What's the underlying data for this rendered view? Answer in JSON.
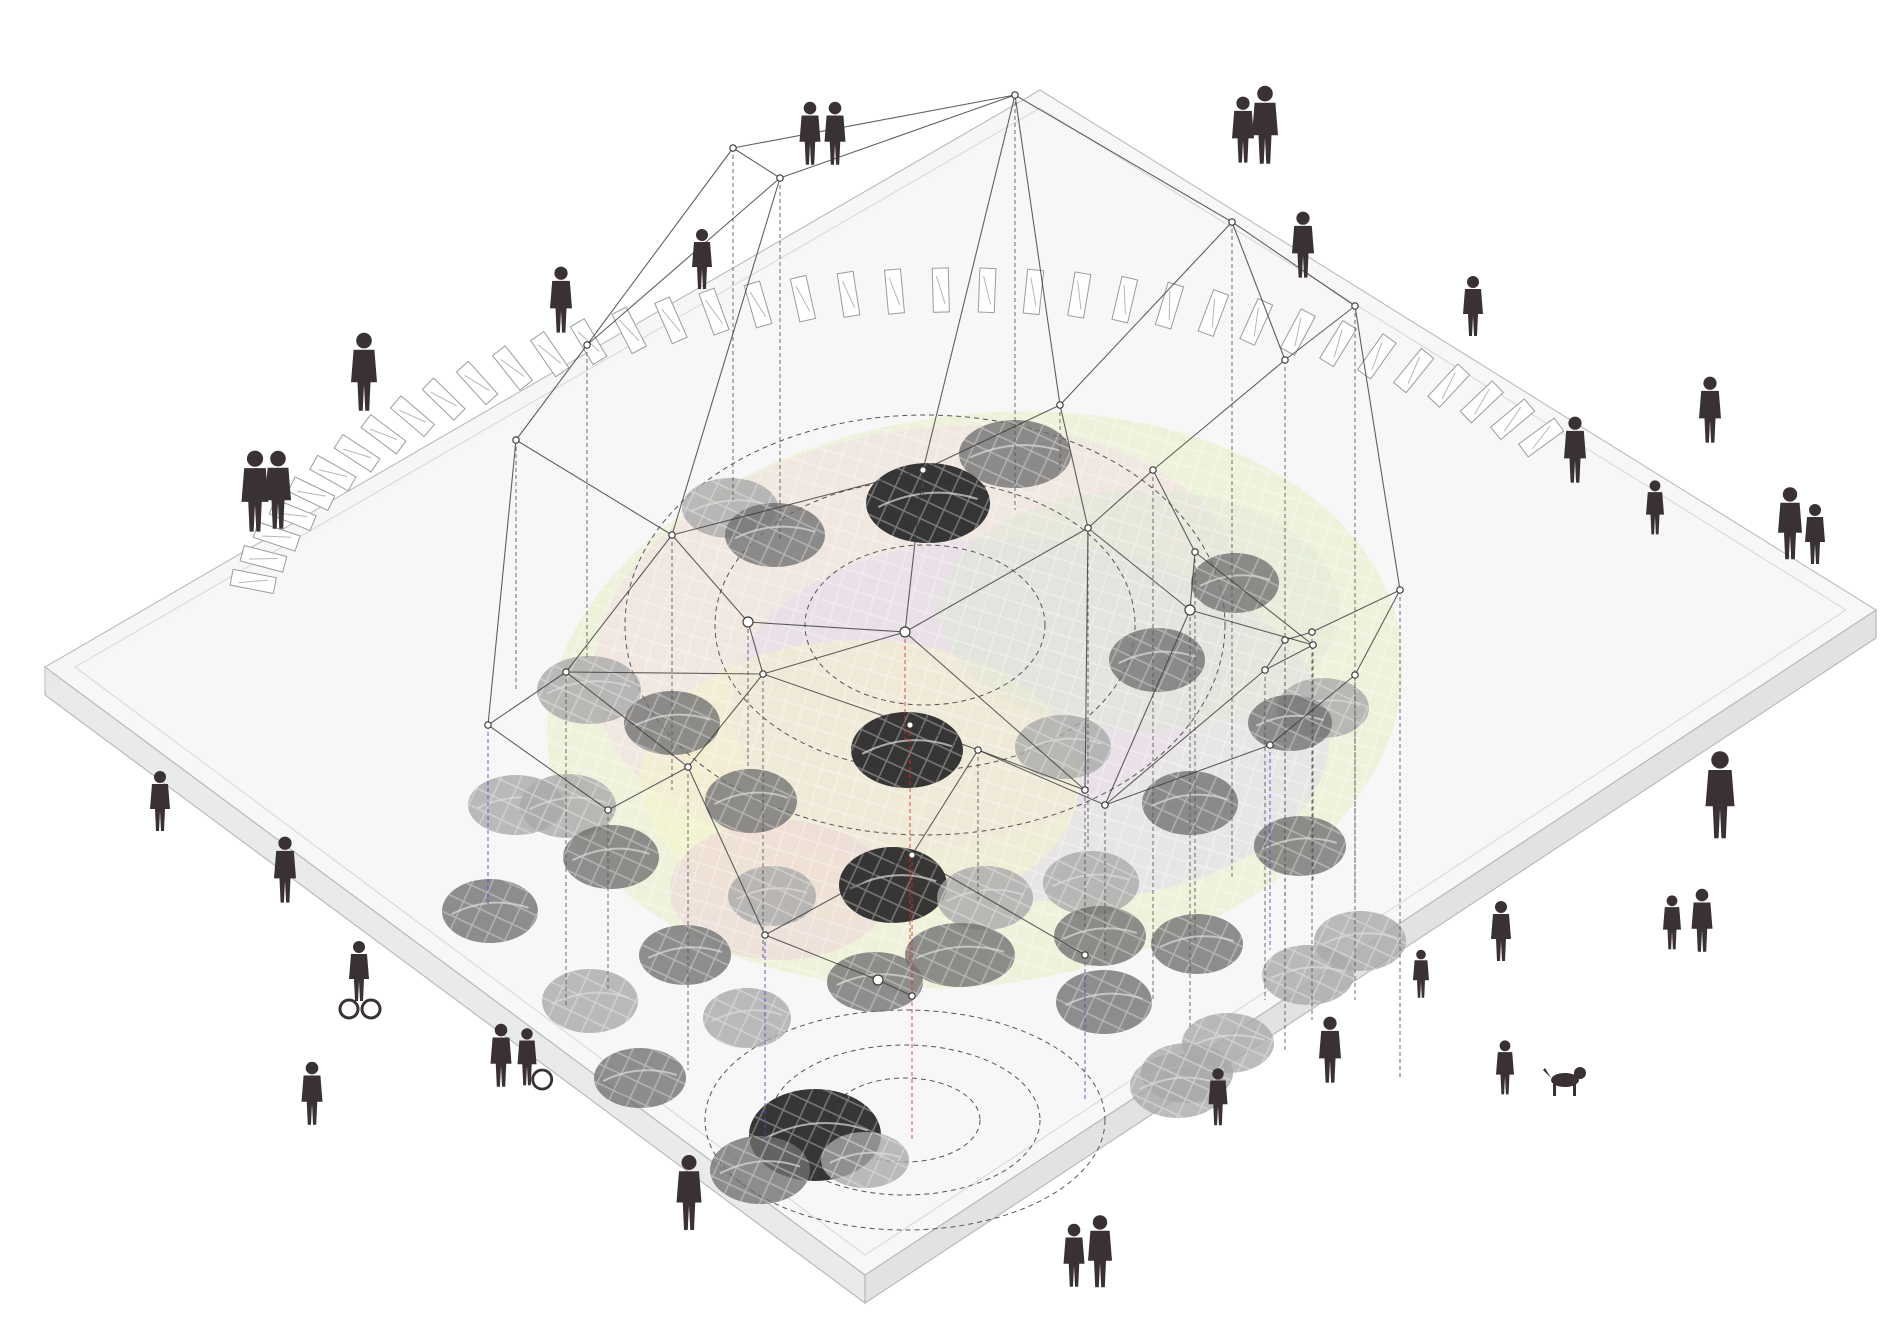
{
  "diagram": {
    "kind": "axonometric urban network diagram",
    "palette": {
      "slab_top": "#f6f7f6",
      "slab_edge": "#e4e6e4",
      "slab_stroke": "#b9bcb9",
      "map_tints": [
        "#e7efc4",
        "#f2dfe4",
        "#e3dcec",
        "#f5f3c8",
        "#dfe8d6",
        "#ecd3d8"
      ],
      "node_dark": "#2b2b2b",
      "node_mid": "#6f6f6f",
      "node_light": "#a8a8a8",
      "network_line": "#3a3a3a",
      "link_blue": "#3b4bd6",
      "link_red": "#d6302b",
      "figure": "#3a3232"
    },
    "legend": [],
    "labels": [],
    "people_icon": "person-silhouette-icon",
    "extra_icons": [
      "cyclist-icon",
      "wheelchair-user-icon",
      "dog-icon"
    ]
  }
}
